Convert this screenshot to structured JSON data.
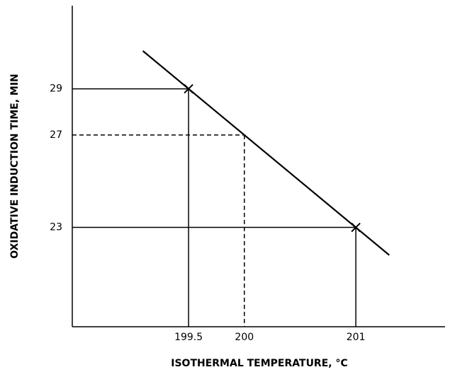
{
  "chart_data": {
    "type": "line",
    "x_label": "ISOTHERMAL TEMPERATURE, °C",
    "y_label": "OXIDATIVE INDUCTION TIME, MIN",
    "xlim": [
      198.457,
      201.8
    ],
    "ylim": [
      18.7,
      32.6
    ],
    "xticks": [
      199.5,
      200,
      201
    ],
    "yticks": [
      23,
      27,
      29
    ],
    "series": [
      {
        "color": "#000000",
        "x": [
          199.09,
          201.3
        ],
        "values": [
          30.64,
          21.8
        ]
      }
    ],
    "points": {
      "x": [
        199.5,
        201
      ],
      "values": [
        29,
        23
      ],
      "guide": "solid"
    },
    "interpolated": {
      "x": [
        200
      ],
      "values": [
        27
      ],
      "guide": "dashed"
    }
  }
}
